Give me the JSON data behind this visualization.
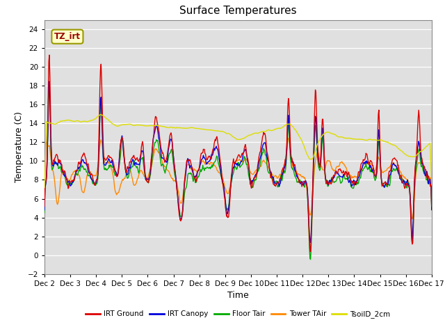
{
  "title": "Surface Temperatures",
  "xlabel": "Time",
  "ylabel": "Temperature (C)",
  "ylim": [
    -2,
    25
  ],
  "yticks": [
    -2,
    0,
    2,
    4,
    6,
    8,
    10,
    12,
    14,
    16,
    18,
    20,
    22,
    24
  ],
  "x_labels": [
    "Dec 2",
    "Dec 3",
    "Dec 4",
    "Dec 5",
    "Dec 6",
    "Dec 7",
    "Dec 8",
    "Dec 9",
    "Dec 10",
    "Dec 11",
    "Dec 12",
    "Dec 13",
    "Dec 14",
    "Dec 15",
    "Dec 16",
    "Dec 17"
  ],
  "series_colors": [
    "#dd0000",
    "#0000dd",
    "#00aa00",
    "#ff8800",
    "#dddd00"
  ],
  "series_names": [
    "IRT Ground",
    "IRT Canopy",
    "Floor Tair",
    "Tower TAir",
    "TsoilD_2cm"
  ],
  "annotation_text": "TZ_irt",
  "bg_color": "#e8e8e8",
  "linewidth": 1.0,
  "n_points": 720
}
